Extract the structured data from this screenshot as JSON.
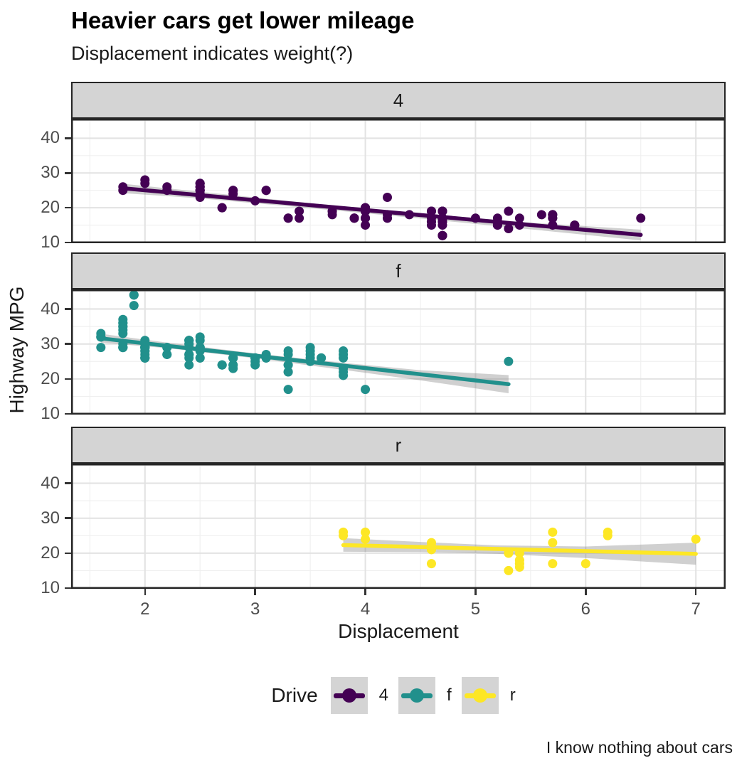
{
  "chart_data": {
    "type": "scatter",
    "title": "Heavier cars get lower mileage",
    "subtitle": "Displacement indicates weight(?)",
    "caption": "I know nothing about cars",
    "xlabel": "Displacement",
    "ylabel": "Highway MPG",
    "xlim": [
      1.33,
      7.27
    ],
    "ylim": [
      9.8,
      45.6
    ],
    "x_ticks": [
      2,
      3,
      4,
      5,
      6,
      7
    ],
    "y_ticks": [
      10,
      20,
      30,
      40
    ],
    "grid": true,
    "legend_title": "Drive",
    "legend_position": "bottom",
    "panel_background": "#ffffff",
    "strip_background": "#d4d4d4",
    "grid_major_color": "#e2e2e2",
    "grid_minor_color": "#f0f0f0",
    "band_color": "#8a8a8a",
    "facets": [
      {
        "facet": "4",
        "color": "#440154",
        "points": [
          [
            1.8,
            26
          ],
          [
            1.8,
            25
          ],
          [
            2.0,
            28
          ],
          [
            2.0,
            27
          ],
          [
            2.8,
            25
          ],
          [
            2.8,
            25
          ],
          [
            3.1,
            25
          ],
          [
            3.1,
            25
          ],
          [
            2.8,
            24
          ],
          [
            3.1,
            25
          ],
          [
            4.2,
            23
          ],
          [
            5.3,
            19
          ],
          [
            5.3,
            14
          ],
          [
            5.7,
            15
          ],
          [
            6.5,
            17
          ],
          [
            3.7,
            19
          ],
          [
            3.7,
            18
          ],
          [
            3.9,
            17
          ],
          [
            3.9,
            17
          ],
          [
            4.7,
            19
          ],
          [
            4.7,
            19
          ],
          [
            4.7,
            12
          ],
          [
            5.2,
            17
          ],
          [
            5.2,
            15
          ],
          [
            3.9,
            17
          ],
          [
            4.7,
            17
          ],
          [
            4.7,
            12
          ],
          [
            4.7,
            17
          ],
          [
            5.2,
            16
          ],
          [
            5.7,
            18
          ],
          [
            5.9,
            15
          ],
          [
            4.7,
            16
          ],
          [
            4.7,
            12
          ],
          [
            4.7,
            17
          ],
          [
            4.7,
            17
          ],
          [
            4.7,
            16
          ],
          [
            5.2,
            15
          ],
          [
            5.2,
            16
          ],
          [
            5.7,
            17
          ],
          [
            5.9,
            15
          ],
          [
            4.0,
            17
          ],
          [
            4.0,
            19
          ],
          [
            4.0,
            17
          ],
          [
            4.0,
            19
          ],
          [
            4.6,
            19
          ],
          [
            4.2,
            17
          ],
          [
            4.2,
            17
          ],
          [
            4.6,
            16
          ],
          [
            4.6,
            16
          ],
          [
            4.6,
            17
          ],
          [
            5.4,
            15
          ],
          [
            5.4,
            17
          ],
          [
            3.0,
            22
          ],
          [
            3.7,
            19
          ],
          [
            4.0,
            20
          ],
          [
            4.7,
            17
          ],
          [
            4.7,
            12
          ],
          [
            4.7,
            19
          ],
          [
            5.7,
            18
          ],
          [
            4.0,
            15
          ],
          [
            4.2,
            18
          ],
          [
            4.4,
            18
          ],
          [
            4.6,
            15
          ],
          [
            4.0,
            17
          ],
          [
            4.0,
            19
          ],
          [
            4.6,
            19
          ],
          [
            5.0,
            17
          ],
          [
            3.3,
            17
          ],
          [
            3.3,
            17
          ],
          [
            4.0,
            20
          ],
          [
            5.6,
            18
          ],
          [
            2.5,
            25
          ],
          [
            2.5,
            24
          ],
          [
            2.5,
            27
          ],
          [
            2.5,
            25
          ],
          [
            2.5,
            26
          ],
          [
            2.5,
            23
          ],
          [
            2.2,
            26
          ],
          [
            2.2,
            25
          ],
          [
            2.5,
            25
          ],
          [
            2.5,
            26
          ],
          [
            2.5,
            27
          ],
          [
            2.5,
            25
          ],
          [
            2.5,
            27
          ],
          [
            2.5,
            26
          ],
          [
            2.7,
            20
          ],
          [
            2.7,
            20
          ],
          [
            3.4,
            19
          ],
          [
            3.4,
            17
          ],
          [
            4.0,
            20
          ],
          [
            4.7,
            17
          ],
          [
            4.7,
            15
          ],
          [
            5.7,
            18
          ],
          [
            4.7,
            17
          ],
          [
            4.7,
            16
          ],
          [
            4.7,
            17
          ],
          [
            5.7,
            17
          ]
        ],
        "trend": {
          "x0": 1.8,
          "y0": 25.6,
          "x1": 6.5,
          "y1": 12.2
        },
        "band": [
          [
            1.8,
            24.2,
            26.9
          ],
          [
            2.5,
            22.7,
            24.6
          ],
          [
            3.5,
            19.9,
            21.3
          ],
          [
            4.5,
            16.9,
            18.4
          ],
          [
            5.5,
            13.8,
            15.7
          ],
          [
            6.5,
            10.6,
            13.7
          ]
        ]
      },
      {
        "facet": "f",
        "color": "#21908c",
        "points": [
          [
            1.8,
            29
          ],
          [
            1.8,
            29
          ],
          [
            2.0,
            31
          ],
          [
            2.0,
            30
          ],
          [
            2.8,
            26
          ],
          [
            2.8,
            26
          ],
          [
            3.1,
            27
          ],
          [
            2.4,
            27
          ],
          [
            2.4,
            30
          ],
          [
            3.1,
            26
          ],
          [
            3.5,
            29
          ],
          [
            3.6,
            26
          ],
          [
            2.4,
            24
          ],
          [
            3.0,
            24
          ],
          [
            3.3,
            22
          ],
          [
            3.3,
            22
          ],
          [
            3.3,
            24
          ],
          [
            3.3,
            24
          ],
          [
            3.3,
            17
          ],
          [
            3.8,
            22
          ],
          [
            3.8,
            21
          ],
          [
            3.8,
            23
          ],
          [
            4.0,
            17
          ],
          [
            1.6,
            33
          ],
          [
            1.6,
            32
          ],
          [
            1.6,
            32
          ],
          [
            1.6,
            29
          ],
          [
            1.6,
            32
          ],
          [
            1.8,
            34
          ],
          [
            1.8,
            36
          ],
          [
            1.8,
            36
          ],
          [
            2.0,
            29
          ],
          [
            2.4,
            26
          ],
          [
            2.4,
            27
          ],
          [
            2.4,
            30
          ],
          [
            2.4,
            31
          ],
          [
            2.5,
            26
          ],
          [
            2.5,
            26
          ],
          [
            3.3,
            28
          ],
          [
            2.0,
            26
          ],
          [
            2.0,
            29
          ],
          [
            2.0,
            28
          ],
          [
            2.0,
            27
          ],
          [
            2.7,
            24
          ],
          [
            2.7,
            24
          ],
          [
            2.7,
            24
          ],
          [
            2.4,
            29
          ],
          [
            2.4,
            27
          ],
          [
            2.5,
            31
          ],
          [
            2.5,
            32
          ],
          [
            3.5,
            27
          ],
          [
            3.5,
            26
          ],
          [
            3.0,
            26
          ],
          [
            3.0,
            25
          ],
          [
            3.5,
            25
          ],
          [
            3.1,
            26
          ],
          [
            3.8,
            26
          ],
          [
            3.8,
            27
          ],
          [
            3.8,
            28
          ],
          [
            5.3,
            25
          ],
          [
            2.2,
            29
          ],
          [
            2.2,
            27
          ],
          [
            2.4,
            31
          ],
          [
            2.4,
            31
          ],
          [
            3.0,
            26
          ],
          [
            3.0,
            26
          ],
          [
            3.5,
            28
          ],
          [
            2.2,
            27
          ],
          [
            2.2,
            29
          ],
          [
            2.4,
            31
          ],
          [
            2.4,
            31
          ],
          [
            3.0,
            26
          ],
          [
            3.3,
            27
          ],
          [
            1.8,
            30
          ],
          [
            1.8,
            33
          ],
          [
            1.8,
            35
          ],
          [
            1.8,
            37
          ],
          [
            1.8,
            35
          ],
          [
            2.0,
            29
          ],
          [
            2.0,
            26
          ],
          [
            2.0,
            29
          ],
          [
            2.0,
            29
          ],
          [
            2.8,
            24
          ],
          [
            1.9,
            44
          ],
          [
            2.0,
            29
          ],
          [
            2.0,
            26
          ],
          [
            2.0,
            29
          ],
          [
            2.0,
            29
          ],
          [
            2.5,
            29
          ],
          [
            2.5,
            29
          ],
          [
            2.8,
            23
          ],
          [
            2.8,
            24
          ],
          [
            1.9,
            44
          ],
          [
            1.9,
            41
          ],
          [
            2.0,
            29
          ],
          [
            2.0,
            26
          ],
          [
            2.5,
            28
          ],
          [
            2.5,
            29
          ],
          [
            1.8,
            29
          ],
          [
            1.8,
            29
          ],
          [
            2.0,
            28
          ],
          [
            2.0,
            29
          ],
          [
            2.8,
            26
          ],
          [
            2.8,
            26
          ],
          [
            3.6,
            26
          ]
        ],
        "trend": {
          "x0": 1.6,
          "y0": 31.6,
          "x1": 5.3,
          "y1": 18.5
        },
        "band": [
          [
            1.6,
            30.4,
            32.9
          ],
          [
            2.2,
            28.8,
            30.4
          ],
          [
            3.0,
            25.9,
            27.3
          ],
          [
            3.8,
            22.6,
            24.6
          ],
          [
            4.5,
            19.6,
            22.5
          ],
          [
            5.3,
            15.9,
            21.1
          ]
        ]
      },
      {
        "facet": "r",
        "color": "#fde725",
        "points": [
          [
            5.3,
            20
          ],
          [
            5.3,
            15
          ],
          [
            5.3,
            20
          ],
          [
            5.7,
            17
          ],
          [
            6.0,
            17
          ],
          [
            5.7,
            26
          ],
          [
            5.7,
            23
          ],
          [
            6.2,
            26
          ],
          [
            6.2,
            25
          ],
          [
            7.0,
            24
          ],
          [
            4.6,
            17
          ],
          [
            5.4,
            17
          ],
          [
            5.4,
            18
          ],
          [
            3.8,
            26
          ],
          [
            3.8,
            25
          ],
          [
            4.0,
            26
          ],
          [
            4.0,
            24
          ],
          [
            4.6,
            21
          ],
          [
            4.6,
            22
          ],
          [
            4.6,
            23
          ],
          [
            4.6,
            22
          ],
          [
            5.4,
            20
          ],
          [
            5.4,
            17
          ],
          [
            5.4,
            16
          ],
          [
            5.4,
            18
          ]
        ],
        "trend": {
          "x0": 3.8,
          "y0": 22.3,
          "x1": 7.0,
          "y1": 19.8
        },
        "band": [
          [
            3.8,
            20.4,
            24.3
          ],
          [
            4.5,
            20.3,
            23.2
          ],
          [
            5.2,
            19.8,
            22.2
          ],
          [
            6.0,
            18.6,
            21.9
          ],
          [
            7.0,
            16.7,
            23.0
          ]
        ]
      }
    ]
  }
}
